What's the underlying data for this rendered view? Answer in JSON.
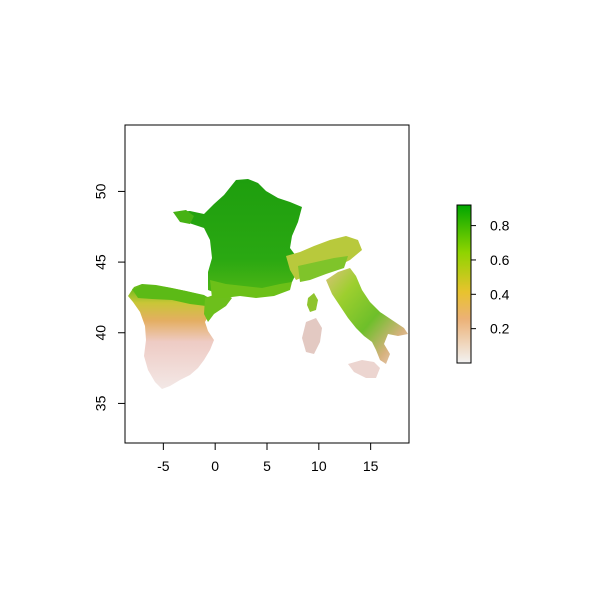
{
  "map": {
    "x_axis": {
      "ticks": [
        -5,
        0,
        5,
        10,
        15
      ],
      "labels": [
        "-5",
        "0",
        "5",
        "10",
        "15"
      ],
      "range": [
        -8.7,
        18.7
      ]
    },
    "y_axis": {
      "ticks": [
        35,
        40,
        45,
        50
      ],
      "labels": [
        "35",
        "40",
        "45",
        "50"
      ],
      "range": [
        32.2,
        54.7
      ]
    },
    "legend": {
      "ticks": [
        0.2,
        0.4,
        0.6,
        0.8
      ],
      "labels": [
        "0.2",
        "0.4",
        "0.6",
        "0.8"
      ],
      "range": [
        0.0,
        0.92
      ],
      "colors": [
        "#f2f2f2",
        "#ecb176",
        "#e8c32e",
        "#8fd400",
        "#00a600"
      ],
      "placement": "right"
    },
    "colors": {
      "high": "#1e9e0e",
      "mid_high": "#5ec412",
      "mid": "#c9d41c",
      "low_mid": "#e7b05e",
      "low": "#eecbc4",
      "very_low": "#f3e8e6"
    }
  }
}
